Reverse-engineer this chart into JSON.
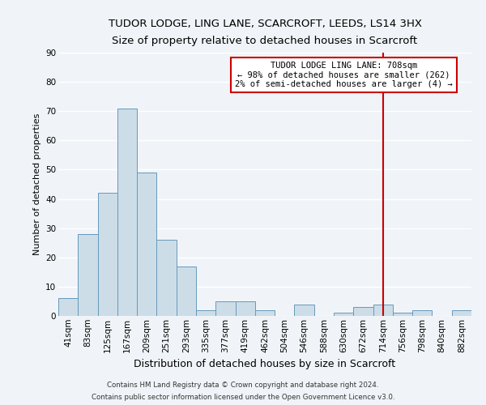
{
  "title": "TUDOR LODGE, LING LANE, SCARCROFT, LEEDS, LS14 3HX",
  "subtitle": "Size of property relative to detached houses in Scarcroft",
  "xlabel": "Distribution of detached houses by size in Scarcroft",
  "ylabel": "Number of detached properties",
  "categories": [
    "41sqm",
    "83sqm",
    "125sqm",
    "167sqm",
    "209sqm",
    "251sqm",
    "293sqm",
    "335sqm",
    "377sqm",
    "419sqm",
    "462sqm",
    "504sqm",
    "546sqm",
    "588sqm",
    "630sqm",
    "672sqm",
    "714sqm",
    "756sqm",
    "798sqm",
    "840sqm",
    "882sqm"
  ],
  "values": [
    6,
    28,
    42,
    71,
    49,
    26,
    17,
    2,
    5,
    5,
    2,
    0,
    4,
    0,
    1,
    3,
    4,
    1,
    2,
    0,
    2
  ],
  "bar_color": "#ccdde8",
  "bar_edge_color": "#6699bb",
  "vline_x": 16,
  "vline_color": "#cc0000",
  "annotation_title": "TUDOR LODGE LING LANE: 708sqm",
  "annotation_line1": "← 98% of detached houses are smaller (262)",
  "annotation_line2": "2% of semi-detached houses are larger (4) →",
  "annotation_box_color": "#ffffff",
  "annotation_box_edge": "#cc0000",
  "ylim": [
    0,
    90
  ],
  "yticks": [
    0,
    10,
    20,
    30,
    40,
    50,
    60,
    70,
    80,
    90
  ],
  "footer1": "Contains HM Land Registry data © Crown copyright and database right 2024.",
  "footer2": "Contains public sector information licensed under the Open Government Licence v3.0.",
  "background_color": "#f0f4f8",
  "grid_color": "#ffffff",
  "title_fontsize": 9.5,
  "subtitle_fontsize": 8.5,
  "ylabel_fontsize": 8,
  "xlabel_fontsize": 9,
  "tick_fontsize": 7.5,
  "footer_fontsize": 6.2
}
